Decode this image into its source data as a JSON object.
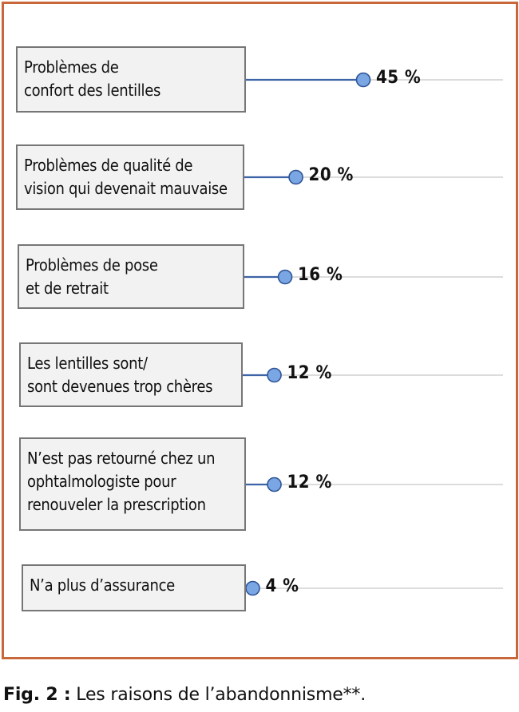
{
  "chart_data": {
    "type": "bar",
    "orientation": "horizontal",
    "style": "lollipop",
    "value_unit": "%",
    "categories": [
      "Problèmes de\nconfort des lentilles",
      "Problèmes de qualité de\nvision qui devenait mauvaise",
      "Problèmes de pose\net de retrait",
      "Les lentilles sont/\nsont devenues trop chères",
      "N’est pas retourné chez un\nophtalmologiste pour\nrenouveler la prescription",
      "N’a plus d’assurance"
    ],
    "values": [
      45,
      20,
      16,
      12,
      12,
      4
    ],
    "value_labels": [
      "45 %",
      "20 %",
      "16 %",
      "12 %",
      "12 %",
      "4 %"
    ],
    "colors": {
      "line": "#3e63a6",
      "marker_fill": "#7aa6e4",
      "marker_stroke": "#2f5597",
      "track": "#d0d0d0",
      "frame": "#c8673a",
      "box_fill": "#f2f2f2",
      "box_border": "#767676"
    }
  },
  "caption": {
    "label": "Fig. 2 :",
    "text": " Les raisons de l’abandonnisme**."
  }
}
